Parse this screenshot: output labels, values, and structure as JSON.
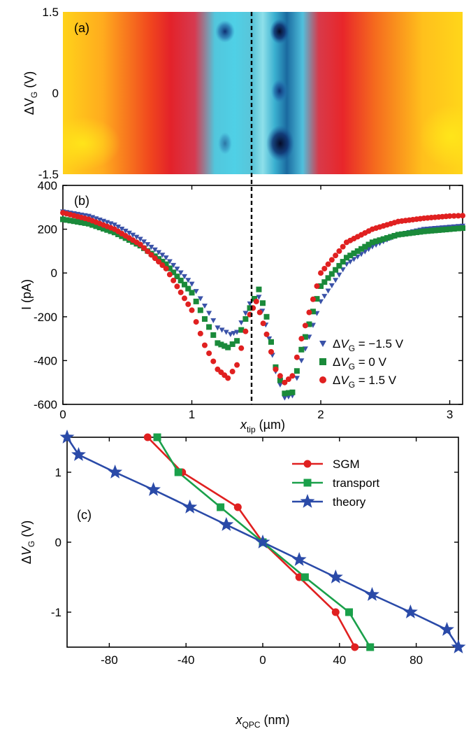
{
  "chart_data": [
    {
      "panel": "(a)",
      "type": "heatmap",
      "ylabel": "ΔV_G (V)",
      "yticks": [
        "1.5",
        "0",
        "-1.5"
      ],
      "ylim": [
        -1.5,
        1.5
      ],
      "xlim": [
        0,
        3.1
      ],
      "colors": [
        "#ffe600",
        "#ff9a1a",
        "#e8202a",
        "#45d0e0",
        "#0a1a4a"
      ],
      "dark_spots_x": [
        1.28,
        1.74
      ],
      "dashed_line_x": 1.5
    },
    {
      "panel": "(b)",
      "type": "scatter",
      "xlabel": "x_tip (µm)",
      "ylabel": "I (pA)",
      "xlim": [
        0,
        3.1
      ],
      "ylim": [
        -600,
        400
      ],
      "xticks": [
        0,
        1,
        2,
        3
      ],
      "yticks": [
        400,
        200,
        0,
        -200,
        -400,
        -600
      ],
      "series": [
        {
          "name": "ΔV_G = −1.5 V",
          "color": "#3a52a8",
          "marker": "triangle-down",
          "x": [
            0,
            0.2,
            0.4,
            0.6,
            0.8,
            1.0,
            1.1,
            1.2,
            1.3,
            1.35,
            1.45,
            1.52,
            1.6,
            1.65,
            1.72,
            1.78,
            1.85,
            2.0,
            2.2,
            2.4,
            2.6,
            2.8,
            3.0,
            3.1
          ],
          "y": [
            280,
            260,
            220,
            155,
            70,
            -50,
            -150,
            -250,
            -280,
            -270,
            -140,
            -110,
            -300,
            -450,
            -570,
            -560,
            -400,
            -130,
            40,
            120,
            175,
            200,
            210,
            215
          ]
        },
        {
          "name": "ΔV_G = 0 V",
          "color": "#1a8a3a",
          "marker": "square",
          "x": [
            0,
            0.2,
            0.4,
            0.6,
            0.8,
            1.0,
            1.1,
            1.2,
            1.28,
            1.35,
            1.45,
            1.52,
            1.58,
            1.65,
            1.72,
            1.78,
            1.85,
            2.0,
            2.2,
            2.4,
            2.6,
            2.8,
            3.0,
            3.1
          ],
          "y": [
            245,
            225,
            185,
            125,
            40,
            -90,
            -210,
            -320,
            -340,
            -310,
            -160,
            -75,
            -200,
            -430,
            -550,
            -545,
            -350,
            -60,
            70,
            140,
            175,
            190,
            200,
            205
          ]
        },
        {
          "name": "ΔV_G = 1.5 V",
          "color": "#e02020",
          "marker": "circle",
          "x": [
            0,
            0.2,
            0.4,
            0.6,
            0.8,
            1.0,
            1.1,
            1.2,
            1.28,
            1.35,
            1.45,
            1.5,
            1.58,
            1.65,
            1.72,
            1.78,
            1.85,
            2.0,
            2.2,
            2.4,
            2.6,
            2.8,
            3.0,
            3.1
          ],
          "y": [
            275,
            245,
            200,
            130,
            20,
            -170,
            -330,
            -440,
            -480,
            -420,
            -190,
            -130,
            -280,
            -440,
            -500,
            -470,
            -300,
            0,
            140,
            200,
            235,
            250,
            260,
            262
          ]
        }
      ],
      "legend_position": "right"
    },
    {
      "panel": "(c)",
      "type": "line",
      "xlabel": "x_QPC (nm)",
      "ylabel": "ΔV_G (V)",
      "xlim": [
        -102,
        102
      ],
      "ylim": [
        -1.5,
        1.5
      ],
      "xticks": [
        -80,
        -40,
        0,
        40,
        80
      ],
      "yticks": [
        1,
        0,
        -1
      ],
      "series": [
        {
          "name": "SGM",
          "color": "#e02020",
          "marker": "circle",
          "x": [
            -60,
            -42,
            -13,
            0,
            19,
            38,
            48
          ],
          "y": [
            1.5,
            1.0,
            0.5,
            0.0,
            -0.5,
            -1.0,
            -1.5
          ]
        },
        {
          "name": "transport",
          "color": "#1aa04a",
          "marker": "square",
          "x": [
            -55,
            -44,
            -22,
            0,
            22,
            45,
            56
          ],
          "y": [
            1.5,
            1.0,
            0.5,
            0.0,
            -0.5,
            -1.0,
            -1.5
          ]
        },
        {
          "name": "theory",
          "color": "#2a4aa8",
          "marker": "star",
          "x": [
            -102,
            -96,
            -77,
            -57,
            -38,
            -19,
            0,
            19,
            38,
            57,
            77,
            96,
            102
          ],
          "y": [
            1.5,
            1.25,
            1.0,
            0.75,
            0.5,
            0.25,
            0.0,
            -0.25,
            -0.5,
            -0.75,
            -1.0,
            -1.25,
            -1.5
          ]
        }
      ],
      "legend_position": "top-right"
    }
  ]
}
